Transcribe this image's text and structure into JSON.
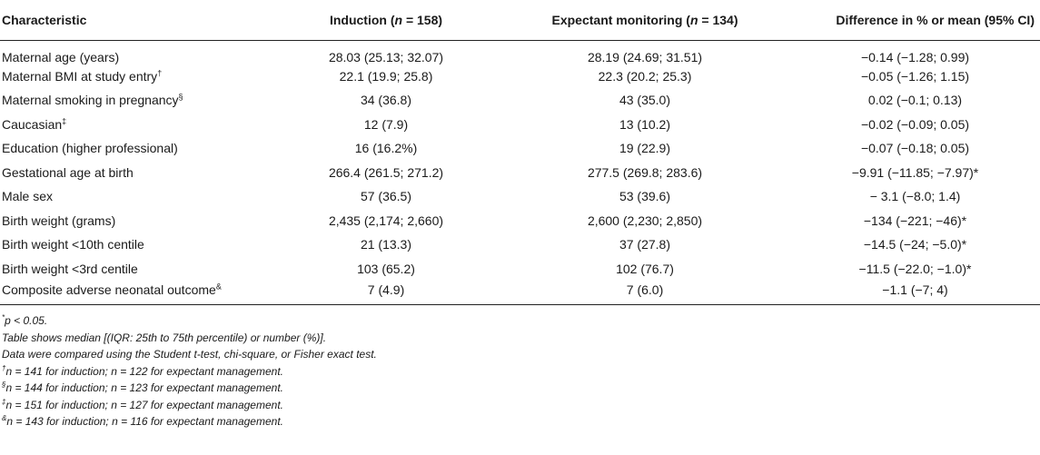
{
  "table": {
    "headers": [
      {
        "text": "Characteristic"
      },
      {
        "prefix": "Induction (",
        "var": "n",
        "suffix": " = 158)"
      },
      {
        "prefix": "Expectant monitoring (",
        "var": "n",
        "suffix": " = 134)"
      },
      {
        "text": "Difference in % or mean (95% CI)"
      }
    ],
    "rows": [
      {
        "label": "Maternal age (years)",
        "mark": "",
        "induction": "28.03 (25.13; 32.07)",
        "expectant": "28.19 (24.69; 31.51)",
        "difference": "−0.14 (−1.28; 0.99)"
      },
      {
        "label": "Maternal BMI at study entry",
        "mark": "†",
        "induction": "22.1 (19.9; 25.8)",
        "expectant": "22.3 (20.2; 25.3)",
        "difference": "−0.05 (−1.26; 1.15)"
      },
      {
        "label": "Maternal smoking in pregnancy",
        "mark": "§",
        "induction": "34 (36.8)",
        "expectant": "43 (35.0)",
        "difference": "0.02 (−0.1; 0.13)"
      },
      {
        "label": "Caucasian",
        "mark": "‡",
        "induction": "12 (7.9)",
        "expectant": "13 (10.2)",
        "difference": "−0.02 (−0.09; 0.05)"
      },
      {
        "label": "Education (higher professional)",
        "mark": "",
        "induction": "16 (16.2%)",
        "expectant": "19 (22.9)",
        "difference": "−0.07 (−0.18; 0.05)"
      },
      {
        "label": "Gestational age at birth",
        "mark": "",
        "induction": "266.4 (261.5; 271.2)",
        "expectant": "277.5 (269.8; 283.6)",
        "difference": "−9.91 (−11.85; −7.97)*"
      },
      {
        "label": "Male sex",
        "mark": "",
        "induction": "57 (36.5)",
        "expectant": "53 (39.6)",
        "difference": "− 3.1 (−8.0; 1.4)"
      },
      {
        "label": "Birth weight (grams)",
        "mark": "",
        "induction": "2,435 (2,174; 2,660)",
        "expectant": "2,600 (2,230; 2,850)",
        "difference": "−134 (−221; −46)*"
      },
      {
        "label": "Birth weight <10th centile",
        "mark": "",
        "induction": "21 (13.3)",
        "expectant": "37 (27.8)",
        "difference": "−14.5 (−24; −5.0)*"
      },
      {
        "label": "Birth weight <3rd centile",
        "mark": "",
        "induction": "103 (65.2)",
        "expectant": "102 (76.7)",
        "difference": "−11.5 (−22.0; −1.0)*"
      },
      {
        "label": "Composite adverse neonatal outcome",
        "mark": "&",
        "induction": "7 (4.9)",
        "expectant": "7 (6.0)",
        "difference": "−1.1 (−7; 4)"
      }
    ]
  },
  "footnotes": [
    {
      "mark": "*",
      "text": "p < 0.05."
    },
    {
      "mark": "",
      "text": "Table shows median [(IQR: 25th to 75th percentile) or number (%)]."
    },
    {
      "mark": "",
      "text": "Data were compared using the Student t-test, chi-square, or Fisher exact test."
    },
    {
      "mark": "†",
      "text": "n = 141 for induction; n = 122 for expectant management."
    },
    {
      "mark": "§",
      "text": "n = 144 for induction; n = 123 for expectant management."
    },
    {
      "mark": "‡",
      "text": "n = 151 for induction; n = 127 for expectant management."
    },
    {
      "mark": "&",
      "text": "n = 143 for induction; n = 116 for expectant management."
    }
  ]
}
